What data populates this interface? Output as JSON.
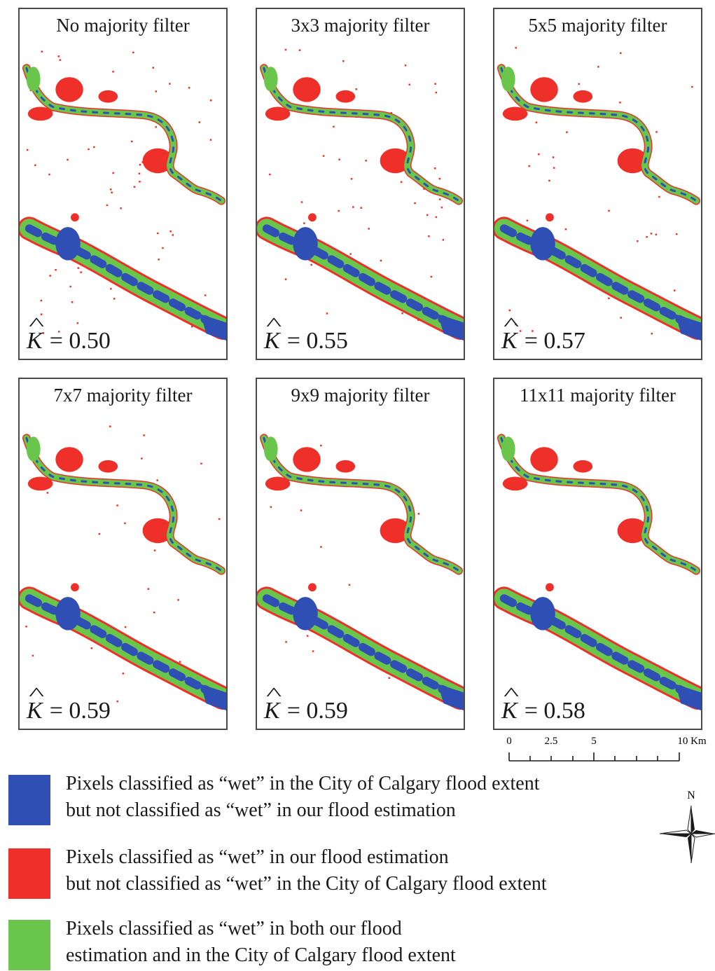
{
  "panels": [
    {
      "title": "No majority filter",
      "kappa_symbol": "K",
      "kappa": "= 0.50"
    },
    {
      "title": "3x3 majority filter",
      "kappa_symbol": "K",
      "kappa": "= 0.55"
    },
    {
      "title": "5x5 majority filter",
      "kappa_symbol": "K",
      "kappa": "= 0.57"
    },
    {
      "title": "7x7 majority filter",
      "kappa_symbol": "K",
      "kappa": "= 0.59"
    },
    {
      "title": "9x9 majority filter",
      "kappa_symbol": "K",
      "kappa": "= 0.59"
    },
    {
      "title": "11x11 majority filter",
      "kappa_symbol": "K",
      "kappa": "= 0.58"
    }
  ],
  "scale_bar": {
    "labels": [
      "0",
      "2.5",
      "5",
      "10 Km"
    ]
  },
  "north_arrow": {
    "label": "N"
  },
  "legend": [
    {
      "color": "#2f4fb5",
      "line1": "Pixels classified as “wet”  in the City of Calgary flood extent",
      "line2": "but not classified as “wet” in our flood estimation"
    },
    {
      "color": "#ee2f2a",
      "line1": "Pixels classified as “wet”  in our flood estimation",
      "line2": "but not classified as “wet”  in the City of Calgary flood extent"
    },
    {
      "color": "#6ac64a",
      "line1": "Pixels classified as “wet” in both our flood",
      "line2": "estimation and in the City of Calgary flood extent"
    }
  ],
  "colors": {
    "blue": "#2f4fb5",
    "red": "#ee2f2a",
    "green": "#6ac64a",
    "frame": "#4a4a4a"
  }
}
